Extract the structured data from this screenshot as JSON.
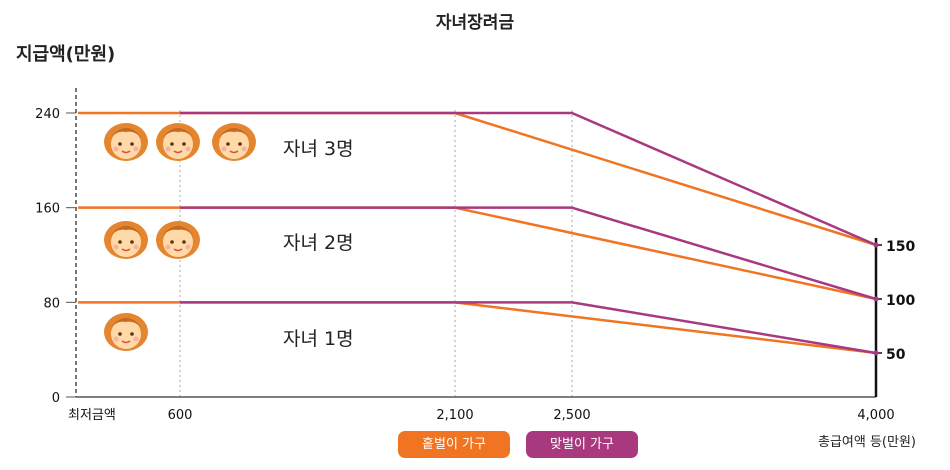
{
  "chart_data": {
    "type": "line",
    "title": "자녀장려금",
    "ylabel": "지급액(만원)",
    "xlabel": "총급여액 등(만원)",
    "x_min_label": "최저금액",
    "x_ticks": [
      "600",
      "2,100",
      "2,500",
      "4,000"
    ],
    "y_ticks_left": [
      "240",
      "160",
      "80",
      "0"
    ],
    "y_ticks_right": [
      "150",
      "100",
      "50"
    ],
    "ylim": [
      0,
      260
    ],
    "series": [
      {
        "name": "홑벌이 가구",
        "color": "#f07422",
        "group": "자녀 1명",
        "points": [
          [
            0,
            80
          ],
          [
            2100,
            80
          ],
          [
            4000,
            50
          ]
        ]
      },
      {
        "name": "맞벌이 가구",
        "color": "#a8397f",
        "group": "자녀 1명",
        "points": [
          [
            600,
            80
          ],
          [
            2500,
            80
          ],
          [
            4000,
            50
          ]
        ]
      },
      {
        "name": "홑벌이 가구",
        "color": "#f07422",
        "group": "자녀 2명",
        "points": [
          [
            0,
            160
          ],
          [
            2100,
            160
          ],
          [
            4000,
            100
          ]
        ]
      },
      {
        "name": "맞벌이 가구",
        "color": "#a8397f",
        "group": "자녀 2명",
        "points": [
          [
            600,
            160
          ],
          [
            2500,
            160
          ],
          [
            4000,
            100
          ]
        ]
      },
      {
        "name": "홑벌이 가구",
        "color": "#f07422",
        "group": "자녀 3명",
        "points": [
          [
            0,
            240
          ],
          [
            2100,
            240
          ],
          [
            4000,
            150
          ]
        ]
      },
      {
        "name": "맞벌이 가구",
        "color": "#a8397f",
        "group": "자녀 3명",
        "points": [
          [
            600,
            240
          ],
          [
            2500,
            240
          ],
          [
            4000,
            150
          ]
        ]
      }
    ],
    "group_labels": [
      "자녀 3명",
      "자녀 2명",
      "자녀 1명"
    ],
    "legend": [
      "홑벌이 가구",
      "맞벌이 가구"
    ]
  }
}
